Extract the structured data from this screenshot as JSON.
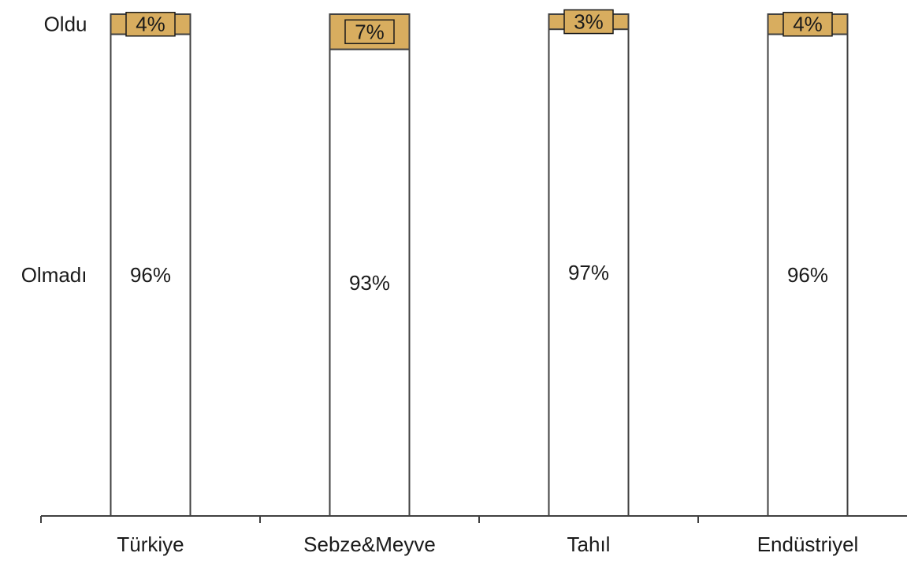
{
  "chart_data": {
    "type": "bar",
    "stacked": true,
    "percent": true,
    "categories": [
      "Türkiye",
      "Sebze&Meyve",
      "Tahıl",
      "Endüstriyel"
    ],
    "series": [
      {
        "name": "Olmadı",
        "values": [
          96,
          93,
          97,
          96
        ],
        "labels": [
          "96%",
          "93%",
          "97%",
          "96%"
        ],
        "color": "#ffffff"
      },
      {
        "name": "Oldu",
        "values": [
          4,
          7,
          3,
          4
        ],
        "labels": [
          "4%",
          "7%",
          "3%",
          "4%"
        ],
        "color": "#d8ad5f"
      }
    ],
    "ylim": [
      0,
      100
    ],
    "grid": false,
    "legend": "left, labels beside the first bar",
    "title": "",
    "xlabel": "",
    "ylabel": ""
  }
}
